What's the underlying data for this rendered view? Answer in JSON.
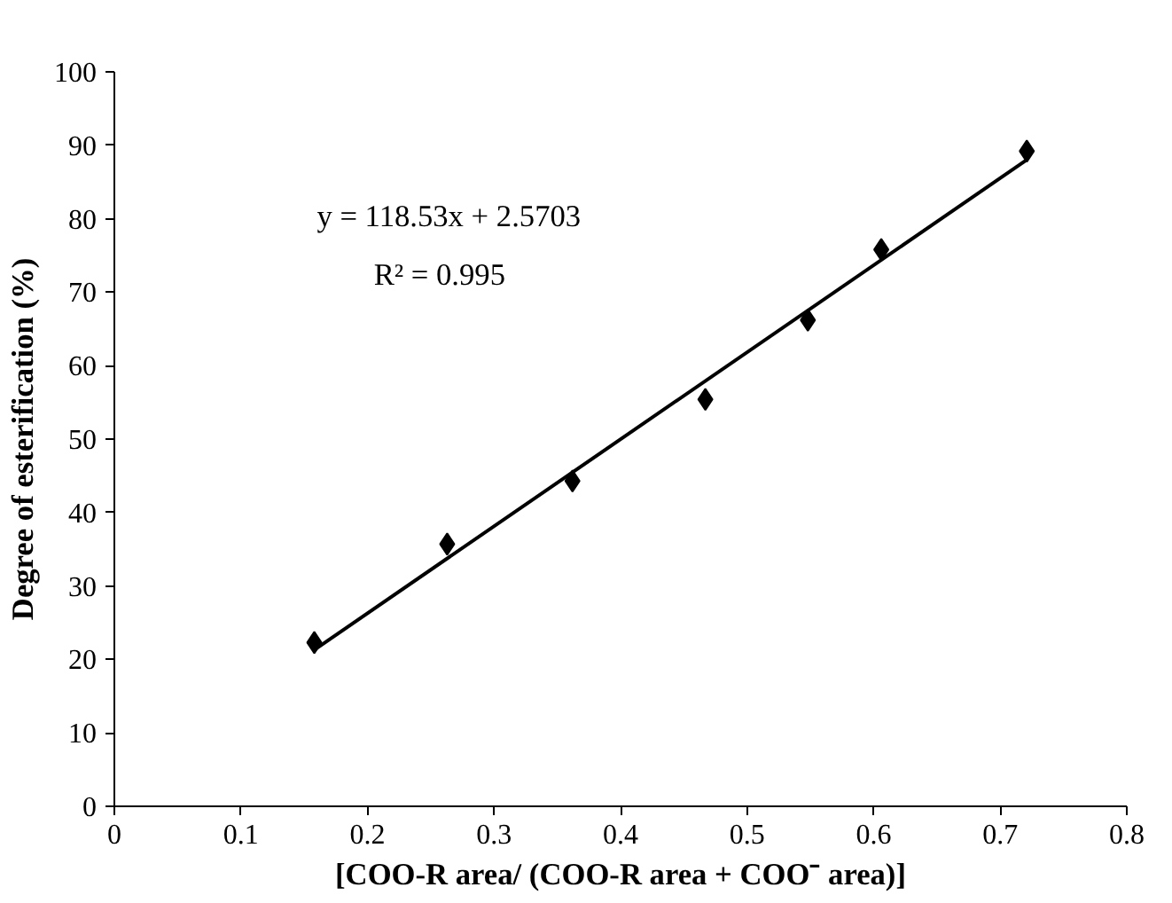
{
  "chart_data": {
    "type": "scatter",
    "xlabel": "[COO-R area/ (COO-R area + COO⁻ area)]",
    "ylabel": "Degree of esterification (%)",
    "xlim": [
      0,
      0.8
    ],
    "xticks": [
      0,
      0.1,
      0.2,
      0.3,
      0.4,
      0.5,
      0.6,
      0.7,
      0.8
    ],
    "ylim": [
      0,
      100
    ],
    "yticks": [
      0,
      10,
      20,
      30,
      40,
      50,
      60,
      70,
      80,
      90,
      100
    ],
    "grid": false,
    "marker": "diamond",
    "series": [
      {
        "color": "#000000",
        "x": [
          0.158,
          0.263,
          0.362,
          0.467,
          0.548,
          0.606,
          0.721
        ],
        "values": [
          22.3,
          35.7,
          44.3,
          55.4,
          66.2,
          75.8,
          89.2
        ]
      },
      {
        "type": "line",
        "marker": "none",
        "color": "#000000",
        "x": [
          0.158,
          0.72
        ],
        "values": [
          21.3,
          87.9
        ]
      }
    ],
    "annotations": [
      "y = 118.53x + 2.5703",
      "R² = 0.995"
    ]
  }
}
